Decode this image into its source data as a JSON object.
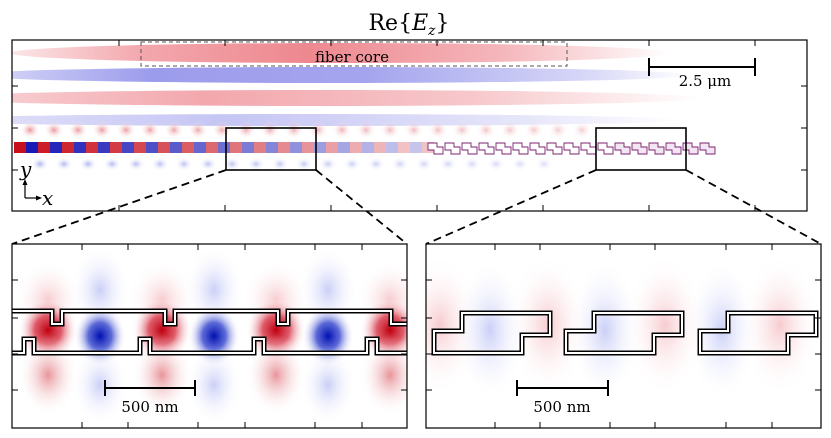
{
  "title": {
    "prefix": "Re",
    "open_brace": "{",
    "var": "E",
    "sub": "z",
    "close_brace": "}"
  },
  "top_panel": {
    "fiber_core_label": "fiber core",
    "scale_bar_label": "2.5 μm",
    "axes": {
      "y": "y",
      "x": "x"
    }
  },
  "inset_left": {
    "scale_bar_label": "500 nm"
  },
  "inset_right": {
    "scale_bar_label": "500 nm"
  },
  "colors": {
    "positive": "#d7191c",
    "negative": "#1a1ac8",
    "zero": "#ffffff",
    "frame": "#000000"
  }
}
